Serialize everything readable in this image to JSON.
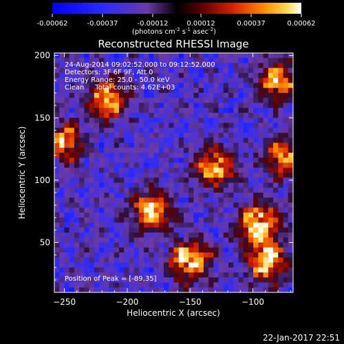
{
  "chart_data": {
    "type": "heatmap",
    "title": "Reconstructed RHESSI Image",
    "xlabel": "Heliocentric X (arcsec)",
    "ylabel": "Heliocentric Y (arcsec)",
    "xlim": [
      -258,
      -68
    ],
    "ylim": [
      10,
      202
    ],
    "xticks": [
      -250,
      -200,
      -150,
      -100
    ],
    "yticks": [
      50,
      100,
      150,
      200
    ],
    "colorbar": {
      "range": [
        -0.00062,
        0.00062
      ],
      "ticks": [
        "-0.00062",
        "-0.00037",
        "-0.00012",
        "0.00012",
        "0.00037",
        "0.00062"
      ],
      "tick_values": [
        -0.00062,
        -0.00037,
        -0.00012,
        0.00012,
        0.00037,
        0.00062
      ],
      "unit_parts": [
        "(photons cm",
        "-2",
        " s",
        "-1",
        " asec",
        "-2",
        ")"
      ]
    },
    "annotations": [
      "24-Aug-2014 09:02:52.000 to 09:12:52.000",
      "Detectors: 3F 6F 9F, Att 0",
      "Energy Range: 25.0 - 50.0 keV",
      "Clean     Total counts: 4.62E+03"
    ],
    "peak_label": "Position of Peak = [-89,35]",
    "peak": [
      -89,
      35
    ],
    "sources": [
      {
        "x": -215,
        "y": 165,
        "peak": 0.0005
      },
      {
        "x": -180,
        "y": 75,
        "peak": 0.00055
      },
      {
        "x": -150,
        "y": 35,
        "peak": 0.00058
      },
      {
        "x": -130,
        "y": 110,
        "peak": 0.0005
      },
      {
        "x": -95,
        "y": 65,
        "peak": 0.0006
      },
      {
        "x": -89,
        "y": 35,
        "peak": 0.00062
      },
      {
        "x": -80,
        "y": 180,
        "peak": 0.00048
      },
      {
        "x": -75,
        "y": 118,
        "peak": 0.00045
      },
      {
        "x": -250,
        "y": 130,
        "peak": 0.0004
      }
    ],
    "grid": false
  },
  "footer": {
    "timestamp": "22-Jan-2017 22:51"
  }
}
